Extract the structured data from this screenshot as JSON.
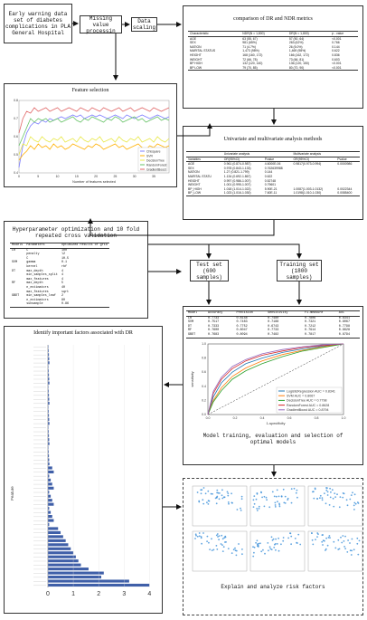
{
  "source_box": {
    "text": "Early warning data set of diabetes complications in PLA General Hospital"
  },
  "missing_box": {
    "text": "Missing value processin"
  },
  "scaling_box": {
    "text": "Data scaling"
  },
  "comparison_box": {
    "title": "comparison of DR and NDR metrics",
    "headers": [
      "Characteristic",
      "NDR(N = 1,800)",
      "DR(N = 1,800)",
      "p - value"
    ],
    "rows": [
      [
        "AGE",
        "63 (55, 67)",
        "57 (50, 64)",
        "<0.001"
      ],
      [
        "SEX",
        "981 (65%)",
        "263 (62%)",
        "0.766"
      ],
      [
        "NATION",
        "71 (4.7%)",
        "26 (5.0%)",
        "0.144"
      ],
      [
        "MARITAL STATUS",
        "1,473 (98%)",
        "1,469 (98%)",
        "0.622"
      ],
      [
        "HEIGHT",
        "168 (160, 172)",
        "166 (162, 172)",
        "0.836"
      ],
      [
        "WEIGHT",
        "72 (66, 78)",
        "73 (66, 81)",
        "0.603"
      ],
      [
        "BP HIGH",
        "132 (120, 140)",
        "136 (120, 150)",
        "<0.001"
      ],
      [
        "BP LOW",
        "79 (70, 85)",
        "80 (70, 90)",
        "<0.001"
      ]
    ]
  },
  "feature_box": {
    "title": "Feature selection",
    "legend": [
      "Chisquare",
      "SVR",
      "DecisionTree",
      "RandomForest",
      "GradientBoost"
    ],
    "xlabel": "Number of features selected"
  },
  "chart_data": {
    "type": "line",
    "xlabel": "Number of features selected",
    "x": [
      1,
      2,
      3,
      4,
      5,
      6,
      7,
      8,
      9,
      10,
      11,
      12,
      13,
      14,
      15,
      16,
      17,
      18,
      19,
      20,
      21,
      22,
      23,
      24,
      25,
      26,
      27,
      28,
      29,
      30,
      31,
      32,
      33,
      34,
      35,
      36,
      37,
      38,
      39,
      40
    ],
    "ylim": [
      0.4,
      0.8
    ],
    "series": [
      {
        "name": "Chisquare",
        "color": "#7f7fff",
        "values": [
          0.43,
          0.55,
          0.62,
          0.66,
          0.68,
          0.67,
          0.69,
          0.68,
          0.7,
          0.69,
          0.7,
          0.71,
          0.7,
          0.71,
          0.72,
          0.71,
          0.72,
          0.7,
          0.71,
          0.72,
          0.71,
          0.72,
          0.71,
          0.7,
          0.71,
          0.72,
          0.71,
          0.7,
          0.72,
          0.71,
          0.7,
          0.71,
          0.72,
          0.71,
          0.7,
          0.71,
          0.72,
          0.71,
          0.7,
          0.71
        ]
      },
      {
        "name": "SVR",
        "color": "#ffb000",
        "values": [
          0.47,
          0.5,
          0.52,
          0.55,
          0.53,
          0.56,
          0.54,
          0.55,
          0.53,
          0.56,
          0.54,
          0.55,
          0.53,
          0.54,
          0.56,
          0.55,
          0.54,
          0.53,
          0.55,
          0.54,
          0.56,
          0.55,
          0.53,
          0.54,
          0.55,
          0.56,
          0.54,
          0.55,
          0.53,
          0.54,
          0.55,
          0.56,
          0.54,
          0.53,
          0.55,
          0.54,
          0.56,
          0.55,
          0.54,
          0.55
        ]
      },
      {
        "name": "DecisionTree",
        "color": "#e8e84a",
        "values": [
          0.5,
          0.56,
          0.55,
          0.6,
          0.58,
          0.57,
          0.6,
          0.58,
          0.57,
          0.59,
          0.58,
          0.6,
          0.57,
          0.58,
          0.59,
          0.57,
          0.6,
          0.58,
          0.57,
          0.59,
          0.58,
          0.6,
          0.57,
          0.58,
          0.59,
          0.57,
          0.6,
          0.58,
          0.57,
          0.59,
          0.58,
          0.6,
          0.57,
          0.58,
          0.59,
          0.57,
          0.6,
          0.58,
          0.57,
          0.59
        ]
      },
      {
        "name": "RandomForest",
        "color": "#66c266",
        "values": [
          0.55,
          0.6,
          0.65,
          0.7,
          0.68,
          0.7,
          0.69,
          0.7,
          0.68,
          0.69,
          0.7,
          0.68,
          0.69,
          0.7,
          0.71,
          0.69,
          0.68,
          0.7,
          0.69,
          0.71,
          0.7,
          0.69,
          0.68,
          0.7,
          0.69,
          0.71,
          0.7,
          0.68,
          0.69,
          0.7,
          0.71,
          0.69,
          0.7,
          0.68,
          0.69,
          0.7,
          0.71,
          0.69,
          0.7,
          0.69
        ]
      },
      {
        "name": "GradientBoost",
        "color": "#e06666",
        "values": [
          0.62,
          0.7,
          0.74,
          0.73,
          0.76,
          0.74,
          0.75,
          0.76,
          0.74,
          0.75,
          0.76,
          0.74,
          0.75,
          0.76,
          0.75,
          0.74,
          0.76,
          0.75,
          0.74,
          0.76,
          0.75,
          0.74,
          0.76,
          0.75,
          0.74,
          0.75,
          0.76,
          0.74,
          0.75,
          0.76,
          0.74,
          0.75,
          0.76,
          0.75,
          0.74,
          0.76,
          0.75,
          0.74,
          0.75,
          0.76
        ]
      }
    ]
  },
  "univariate_box": {
    "title": "Univariate and multivariate analysis methods",
    "group_headers": [
      "Univariate analysis",
      "Multivariate analysis"
    ],
    "headers": [
      "Variables",
      "OR(95%CI)",
      "Pvalue",
      "OR(95%CI)",
      "Pvalue"
    ],
    "rows": [
      [
        "AGE",
        "0.961 (0.874-0.987)",
        "4.6000E-06",
        "0.9817(0.973-0.994)",
        "0.0000986"
      ],
      [
        "SEX",
        "0.978 (0.843-1.133)",
        "0.762639988",
        "",
        ""
      ],
      [
        "NATION",
        "1.27 (0.821-1.799)",
        "0.144",
        "",
        ""
      ],
      [
        "MARITAL STATU",
        "1.134 (0.692-1.867)",
        "0.622",
        "",
        ""
      ],
      [
        "HEIGHT",
        "0.997 (0.986-1.007)",
        "0.52748",
        "",
        ""
      ],
      [
        "WEIGHT",
        "1.001 (0.995-1.007)",
        "0.79601",
        "",
        ""
      ],
      [
        "BP_HIGH",
        "1.018 (1.014-1.022)",
        "5.90E-21",
        "1.0087(1.003-1.0132)",
        "0.0022344"
      ],
      [
        "BP_LOW",
        "1.023 (1.016-1.030)",
        "7.60E-11",
        "1.0198(1.010-1.030)",
        "0.0085400"
      ]
    ]
  },
  "hyper_box": {
    "title": "Hyperparameter optimization and 10 fold repeated cross validation",
    "headers": [
      "Models",
      "Parameters",
      "Optimized results of grid"
    ],
    "rows": [
      [
        "LR",
        "C",
        "100"
      ],
      [
        "",
        "penalty",
        "l2"
      ],
      [
        "",
        "C",
        "10.5"
      ],
      [
        "SVM",
        "gamma",
        "0.1"
      ],
      [
        "",
        "kernel",
        "rbf"
      ],
      [
        "DT",
        "max_depth",
        "4"
      ],
      [
        "",
        "min_samples_split",
        "4"
      ],
      [
        "",
        "max_features",
        "4"
      ],
      [
        "RF",
        "max_depth",
        "5"
      ],
      [
        "",
        "n_estimators",
        "40"
      ],
      [
        "",
        "max_features",
        "sqrt"
      ],
      [
        "GBDT",
        "min_samples_leaf",
        "2"
      ],
      [
        "",
        "n_estimators",
        "80"
      ],
      [
        "",
        "subsample",
        "0.86"
      ]
    ]
  },
  "test_box": {
    "text": "Test set (600 samples)"
  },
  "train_box": {
    "text": "Training set (1800 samples)"
  },
  "metrics_table": {
    "headers": [
      "Model",
      "Accuracy",
      "Precision",
      "Sensitivity",
      "F1-measure",
      "AUC"
    ],
    "rows": [
      [
        "LR",
        "0.7733",
        "0.8148",
        "0.7480",
        "0.7806",
        "0.8341"
      ],
      [
        "SVM",
        "0.7517",
        "0.7483",
        "0.7188",
        "0.7321",
        "0.8067"
      ],
      [
        "DT",
        "0.7333",
        "0.7752",
        "0.6743",
        "0.7212",
        "0.7798"
      ],
      [
        "RF",
        "0.7600",
        "0.8047",
        "0.7733",
        "0.7914",
        "0.8628"
      ],
      [
        "GBDT",
        "0.7683",
        "0.8094",
        "0.7482",
        "0.7817",
        "0.8794"
      ]
    ]
  },
  "roc": {
    "xlabel": "1-specificity",
    "ylabel": "sensitivity",
    "legend": [
      {
        "label": "LogisticRegression AUC = 0.8341",
        "color": "#1f77b4"
      },
      {
        "label": "SVM AUC = 0.8067",
        "color": "#ff7f0e"
      },
      {
        "label": "DecisionTree AUC = 0.7798",
        "color": "#2ca02c"
      },
      {
        "label": "RandomForest AUC = 0.8628",
        "color": "#d62728"
      },
      {
        "label": "GradientBoost AUC = 0.8794",
        "color": "#9467bd"
      }
    ],
    "ticks": [
      "0.0",
      "0.2",
      "0.4",
      "0.6",
      "0.8",
      "1.0"
    ]
  },
  "model_box": {
    "text": "Model training, evaluation and selection of optimal models"
  },
  "important_box": {
    "title": "Identify important factors associated with DR",
    "ylabel": "Feature",
    "ticks": [
      "0",
      "1",
      "2",
      "3",
      "4"
    ]
  },
  "shap_box": {
    "text": "Explain and analyze risk factors"
  }
}
